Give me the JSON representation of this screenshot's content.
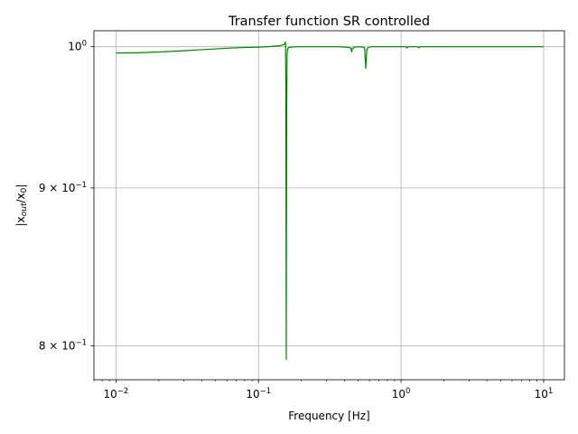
{
  "chart_data": {
    "type": "line",
    "title": "Transfer function SR controlled",
    "xlabel": "Frequency [Hz]",
    "ylabel": "|x_out/x_0|",
    "xscale": "log",
    "yscale": "log",
    "xlim": [
      0.007,
      14
    ],
    "ylim": [
      0.78,
      1.012
    ],
    "grid": true,
    "line_color": "#008000",
    "x_ticks": [
      {
        "value": 0.01,
        "base": "10",
        "exp": "−2"
      },
      {
        "value": 0.1,
        "base": "10",
        "exp": "−1"
      },
      {
        "value": 1,
        "base": "10",
        "exp": "0"
      },
      {
        "value": 10,
        "base": "10",
        "exp": "1"
      }
    ],
    "y_ticks": [
      {
        "value": 1.0,
        "mant": "",
        "base": "10",
        "exp": "0"
      },
      {
        "value": 0.9,
        "mant": "9 × ",
        "base": "10",
        "exp": "−1"
      },
      {
        "value": 0.8,
        "mant": "8 × ",
        "base": "10",
        "exp": "−1"
      }
    ],
    "series": [
      {
        "x": [
          0.01,
          0.012,
          0.015,
          0.02,
          0.025,
          0.03,
          0.04,
          0.05,
          0.06,
          0.08,
          0.1,
          0.12,
          0.14,
          0.15,
          0.153,
          0.1545,
          0.1555,
          0.1565,
          0.1575,
          0.1585,
          0.16,
          0.163,
          0.17,
          0.18,
          0.2,
          0.25,
          0.3,
          0.35,
          0.4,
          0.43,
          0.445,
          0.45,
          0.455,
          0.47,
          0.5,
          0.54,
          0.555,
          0.565,
          0.575,
          0.59,
          0.62,
          0.7,
          0.8,
          0.9,
          1.0,
          1.08,
          1.1,
          1.12,
          1.2,
          1.3,
          1.33,
          1.36,
          1.5,
          2,
          3,
          5,
          10
        ],
        "y": [
          0.9953,
          0.9954,
          0.9956,
          0.9961,
          0.9966,
          0.997,
          0.9978,
          0.9984,
          0.9989,
          0.9994,
          0.9997,
          1.0001,
          1.0007,
          1.0015,
          1.0025,
          1.0035,
          0.97,
          0.792,
          0.95,
          0.994,
          0.9985,
          0.9995,
          0.9998,
          0.9999,
          1.0,
          1.0,
          1.0,
          1.0,
          0.9998,
          0.9994,
          0.999,
          0.9962,
          0.9985,
          0.9997,
          1.0,
          0.9997,
          0.999,
          0.984,
          0.998,
          0.9995,
          1.0,
          1.0,
          1.0,
          1.0,
          1.0,
          1.0,
          0.999,
          1.0,
          1.0,
          1.0,
          0.9993,
          1.0,
          1.0,
          1.0,
          1.0,
          1.0,
          1.0
        ]
      }
    ]
  }
}
